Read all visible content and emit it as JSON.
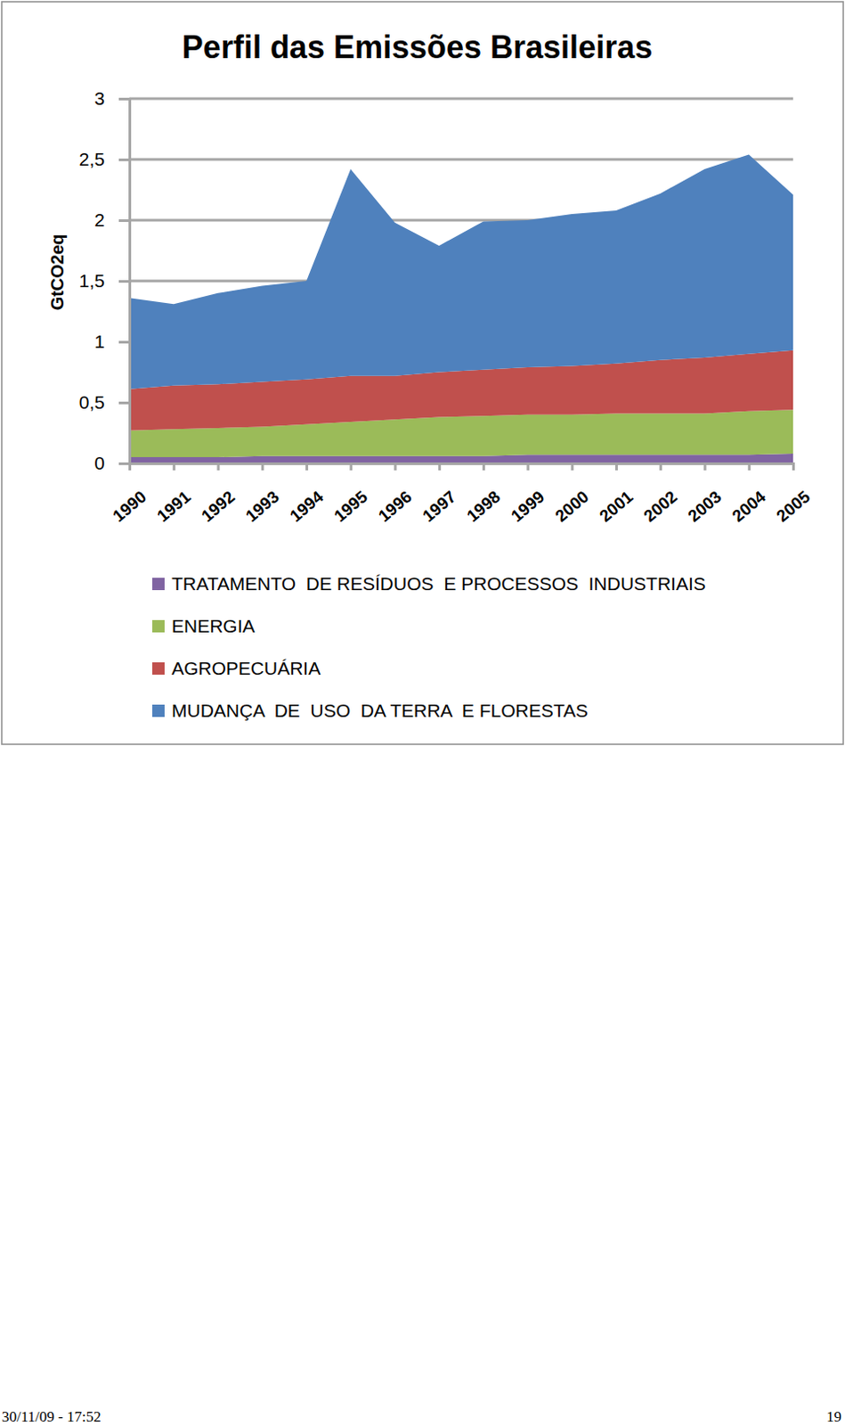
{
  "chart_data": {
    "type": "area",
    "title": "Perfil das Emissões Brasileiras",
    "y_label": "GtCO2eq",
    "categories": [
      "1990",
      "1991",
      "1992",
      "1993",
      "1994",
      "1995",
      "1996",
      "1997",
      "1998",
      "1999",
      "2000",
      "2001",
      "2002",
      "2003",
      "2004",
      "2005"
    ],
    "series": [
      {
        "name": "TRATAMENTO  DE RESÍDUOS  E PROCESSOS  INDUSTRIAIS",
        "color": "#8064a2",
        "values": [
          0.05,
          0.05,
          0.05,
          0.06,
          0.06,
          0.06,
          0.06,
          0.06,
          0.06,
          0.07,
          0.07,
          0.07,
          0.07,
          0.07,
          0.07,
          0.08
        ]
      },
      {
        "name": "ENERGIA",
        "color": "#9bbb59",
        "values": [
          0.22,
          0.23,
          0.24,
          0.24,
          0.26,
          0.28,
          0.3,
          0.32,
          0.33,
          0.33,
          0.33,
          0.34,
          0.34,
          0.34,
          0.36,
          0.36
        ]
      },
      {
        "name": "AGROPECUÁRIA",
        "color": "#c0504d",
        "values": [
          0.34,
          0.36,
          0.36,
          0.37,
          0.37,
          0.38,
          0.36,
          0.37,
          0.38,
          0.39,
          0.4,
          0.41,
          0.44,
          0.46,
          0.47,
          0.49
        ]
      },
      {
        "name": "MUDANÇA  DE  USO  DA TERRA  E FLORESTAS",
        "color": "#4f81bd",
        "values": [
          0.75,
          0.67,
          0.75,
          0.79,
          0.81,
          1.7,
          1.26,
          1.04,
          1.22,
          1.21,
          1.25,
          1.26,
          1.37,
          1.55,
          1.64,
          1.28
        ]
      }
    ],
    "ylim": [
      0,
      3
    ],
    "yticks": [
      0,
      {
        "value": 0.5,
        "label": "0,5"
      },
      1,
      {
        "value": 1.5,
        "label": "1,5"
      },
      2,
      {
        "value": 2.5,
        "label": "2,5"
      },
      3
    ],
    "grid": true,
    "stacked": true,
    "legend": "bottom",
    "footer_left": "30/11/09 - 17:52",
    "footer_right": "19"
  }
}
